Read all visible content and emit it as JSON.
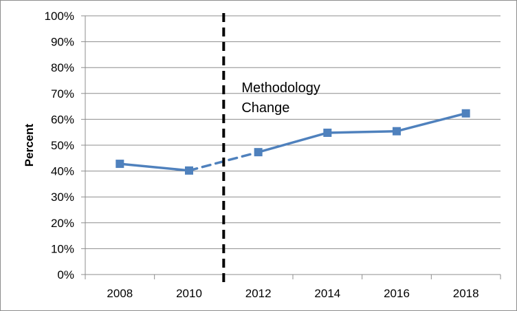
{
  "chart_data": {
    "type": "line",
    "ylabel": "Percent",
    "xlabel": "",
    "title": "",
    "categories": [
      "2008",
      "2010",
      "2012",
      "2014",
      "2016",
      "2018"
    ],
    "series": [
      {
        "values": [
          42.8,
          40.2,
          47.3,
          54.8,
          55.4,
          62.3
        ],
        "color": "#4f81bd",
        "marker": "square",
        "dashed_segments": [
          [
            1,
            2
          ]
        ]
      }
    ],
    "ylim": [
      0,
      100
    ],
    "yticks": [
      0,
      10,
      20,
      30,
      40,
      50,
      60,
      70,
      80,
      90,
      100
    ],
    "ytick_labels": [
      "0%",
      "10%",
      "20%",
      "30%",
      "40%",
      "50%",
      "60%",
      "70%",
      "80%",
      "90%",
      "100%"
    ],
    "grid": "horizontal",
    "legend": "none",
    "annotation": {
      "lines": [
        "Methodology",
        "Change"
      ],
      "x_between": [
        "2010",
        "2012"
      ],
      "style": "vertical dashed line"
    }
  }
}
